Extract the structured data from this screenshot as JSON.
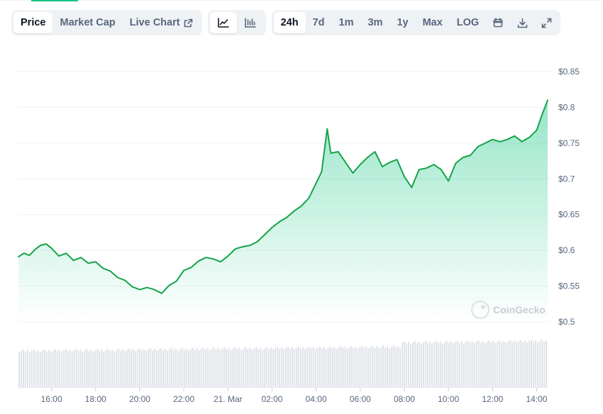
{
  "colors": {
    "accent": "#16c784",
    "line": "#16a34a",
    "area_top": "#16c784",
    "grid": "#eef0f3",
    "volume": "#dfe2e8",
    "watermark": "#c8cdd5"
  },
  "toolbar": {
    "view_tabs": [
      {
        "label": "Price",
        "active": true
      },
      {
        "label": "Market Cap",
        "active": false
      },
      {
        "label": "Live Chart",
        "active": false,
        "icon": "external-link-icon"
      }
    ],
    "chart_type_icons": [
      "line-chart-icon",
      "candlestick-chart-icon"
    ],
    "ranges": [
      {
        "label": "24h",
        "active": true
      },
      {
        "label": "7d",
        "active": false
      },
      {
        "label": "1m",
        "active": false
      },
      {
        "label": "3m",
        "active": false
      },
      {
        "label": "1y",
        "active": false
      },
      {
        "label": "Max",
        "active": false
      },
      {
        "label": "LOG",
        "active": false
      }
    ],
    "tool_icons": [
      "calendar-icon",
      "download-icon",
      "fullscreen-icon"
    ]
  },
  "watermark": "CoinGecko",
  "chart_data": {
    "type": "area",
    "title": "",
    "xlabel": "",
    "ylabel": "",
    "ylim": [
      0.5,
      0.85
    ],
    "y_ticks": [
      0.5,
      0.55,
      0.6,
      0.65,
      0.7,
      0.75,
      0.8,
      0.85
    ],
    "y_tick_labels": [
      "$0.5",
      "$0.55",
      "$0.6",
      "$0.65",
      "$0.7",
      "$0.75",
      "$0.8",
      "$0.85"
    ],
    "x_range": [
      "2025-03-20 14:30",
      "2025-03-21 14:30"
    ],
    "x_ticks": [
      "2025-03-20 16:00",
      "2025-03-20 18:00",
      "2025-03-20 20:00",
      "2025-03-20 22:00",
      "2025-03-21 00:00",
      "2025-03-21 02:00",
      "2025-03-21 04:00",
      "2025-03-21 06:00",
      "2025-03-21 08:00",
      "2025-03-21 10:00",
      "2025-03-21 12:00",
      "2025-03-21 14:00"
    ],
    "x_tick_labels": [
      "16:00",
      "18:00",
      "20:00",
      "22:00",
      "21. Mar",
      "02:00",
      "04:00",
      "06:00",
      "08:00",
      "10:00",
      "12:00",
      "14:00"
    ],
    "legend": "none",
    "grid": "horizontal",
    "series": [
      {
        "x": [
          "2025-03-20 14:30",
          "2025-03-20 14:45",
          "2025-03-20 15:00",
          "2025-03-20 15:15",
          "2025-03-20 15:30",
          "2025-03-20 15:45",
          "2025-03-20 16:00",
          "2025-03-20 16:20",
          "2025-03-20 16:40",
          "2025-03-20 17:00",
          "2025-03-20 17:20",
          "2025-03-20 17:40",
          "2025-03-20 18:00",
          "2025-03-20 18:20",
          "2025-03-20 18:40",
          "2025-03-20 19:00",
          "2025-03-20 19:20",
          "2025-03-20 19:40",
          "2025-03-20 20:00",
          "2025-03-20 20:20",
          "2025-03-20 20:40",
          "2025-03-20 21:00",
          "2025-03-20 21:20",
          "2025-03-20 21:40",
          "2025-03-20 22:00",
          "2025-03-20 22:20",
          "2025-03-20 22:40",
          "2025-03-20 23:00",
          "2025-03-20 23:20",
          "2025-03-20 23:40",
          "2025-03-21 00:00",
          "2025-03-21 00:20",
          "2025-03-21 00:40",
          "2025-03-21 01:00",
          "2025-03-21 01:20",
          "2025-03-21 01:40",
          "2025-03-21 02:00",
          "2025-03-21 02:20",
          "2025-03-21 02:40",
          "2025-03-21 03:00",
          "2025-03-21 03:20",
          "2025-03-21 03:40",
          "2025-03-21 04:00",
          "2025-03-21 04:15",
          "2025-03-21 04:30",
          "2025-03-21 04:40",
          "2025-03-21 05:00",
          "2025-03-21 05:20",
          "2025-03-21 05:40",
          "2025-03-21 06:00",
          "2025-03-21 06:20",
          "2025-03-21 06:40",
          "2025-03-21 07:00",
          "2025-03-21 07:20",
          "2025-03-21 07:40",
          "2025-03-21 08:00",
          "2025-03-21 08:20",
          "2025-03-21 08:40",
          "2025-03-21 09:00",
          "2025-03-21 09:20",
          "2025-03-21 09:40",
          "2025-03-21 10:00",
          "2025-03-21 10:20",
          "2025-03-21 10:40",
          "2025-03-21 11:00",
          "2025-03-21 11:20",
          "2025-03-21 11:40",
          "2025-03-21 12:00",
          "2025-03-21 12:20",
          "2025-03-21 12:40",
          "2025-03-21 13:00",
          "2025-03-21 13:20",
          "2025-03-21 13:40",
          "2025-03-21 14:00",
          "2025-03-21 14:15",
          "2025-03-21 14:30"
        ],
        "values": [
          0.591,
          0.596,
          0.593,
          0.601,
          0.607,
          0.609,
          0.603,
          0.592,
          0.596,
          0.586,
          0.59,
          0.582,
          0.584,
          0.575,
          0.571,
          0.562,
          0.558,
          0.549,
          0.545,
          0.548,
          0.545,
          0.54,
          0.551,
          0.557,
          0.572,
          0.576,
          0.585,
          0.59,
          0.588,
          0.584,
          0.592,
          0.602,
          0.605,
          0.607,
          0.612,
          0.622,
          0.632,
          0.64,
          0.646,
          0.655,
          0.662,
          0.673,
          0.694,
          0.71,
          0.77,
          0.736,
          0.738,
          0.723,
          0.708,
          0.72,
          0.73,
          0.738,
          0.717,
          0.723,
          0.727,
          0.703,
          0.688,
          0.713,
          0.715,
          0.72,
          0.713,
          0.697,
          0.722,
          0.73,
          0.733,
          0.745,
          0.75,
          0.755,
          0.752,
          0.755,
          0.76,
          0.752,
          0.758,
          0.768,
          0.79,
          0.81
        ]
      }
    ],
    "volume_bars": "relative only (no volume axis printed)"
  }
}
